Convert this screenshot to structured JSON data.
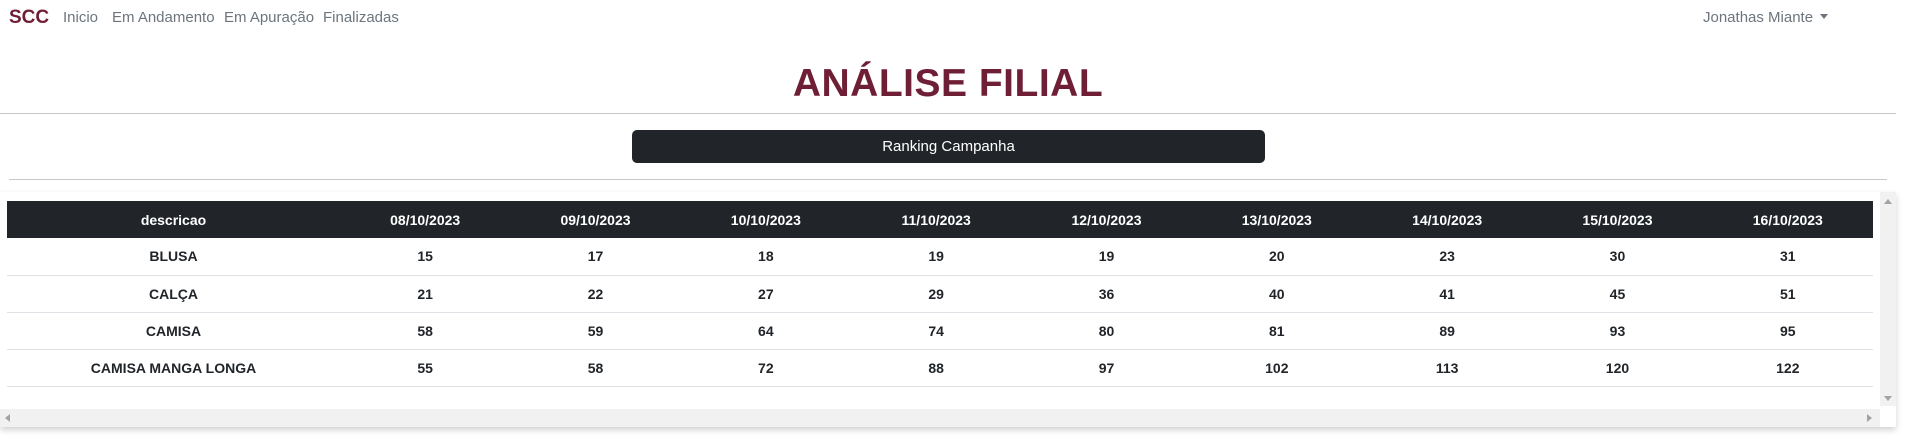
{
  "navbar": {
    "brand": "SCC",
    "links": [
      "Inicio",
      "Em Andamento",
      "Em Apuração",
      "Finalizadas"
    ],
    "user": "Jonathas Miante"
  },
  "page": {
    "title": "ANÁLISE FILIAL",
    "ranking_button": "Ranking Campanha"
  },
  "table": {
    "headers": [
      "descricao",
      "08/10/2023",
      "09/10/2023",
      "10/10/2023",
      "11/10/2023",
      "12/10/2023",
      "13/10/2023",
      "14/10/2023",
      "15/10/2023",
      "16/10/2023"
    ],
    "rows": [
      [
        "BLUSA",
        "15",
        "17",
        "18",
        "19",
        "19",
        "20",
        "23",
        "30",
        "31"
      ],
      [
        "CALÇA",
        "21",
        "22",
        "27",
        "29",
        "36",
        "40",
        "41",
        "45",
        "51"
      ],
      [
        "CAMISA",
        "58",
        "59",
        "64",
        "74",
        "80",
        "81",
        "89",
        "93",
        "95"
      ],
      [
        "CAMISA MANGA LONGA",
        "55",
        "58",
        "72",
        "88",
        "97",
        "102",
        "113",
        "120",
        "122"
      ]
    ]
  },
  "colors": {
    "brand": "#6e1f36",
    "dark": "#212529",
    "muted": "#6c757d"
  },
  "icons": {
    "user_dropdown": "caret-down-icon",
    "scroll_up": "arrow-up-icon",
    "scroll_down": "arrow-down-icon",
    "scroll_left": "arrow-left-icon",
    "scroll_right": "arrow-right-icon"
  }
}
